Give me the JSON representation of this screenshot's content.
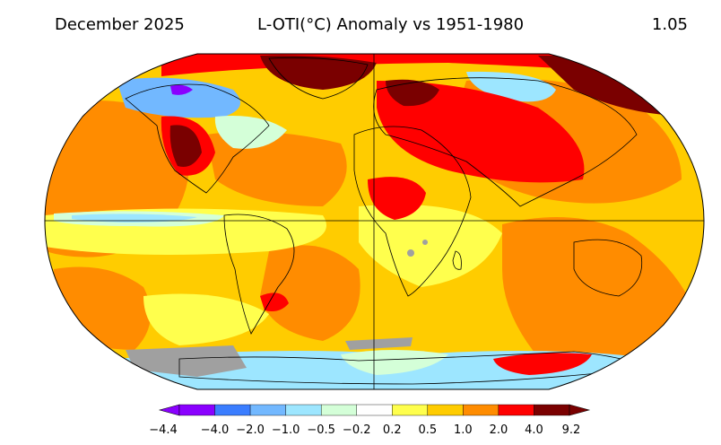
{
  "header": {
    "date": "December 2025",
    "title": "L-OTI(°C) Anomaly vs 1951-1980",
    "global_mean": "1.05"
  },
  "legend": {
    "labels": [
      "−4.4",
      "−4.0",
      "−2.0",
      "−1.0",
      "−0.5",
      "−0.2",
      "0.2",
      "0.5",
      "1.0",
      "2.0",
      "4.0",
      "9.2"
    ],
    "colors": [
      "#8a00ff",
      "#3a7dff",
      "#72b8ff",
      "#9de6ff",
      "#d4ffd8",
      "#ffffff",
      "#ffff4d",
      "#ffcc00",
      "#ff8c00",
      "#ff0000",
      "#7a0000"
    ]
  },
  "palette": {
    "nodata": "#a0a0a0",
    "outline": "#000000"
  }
}
